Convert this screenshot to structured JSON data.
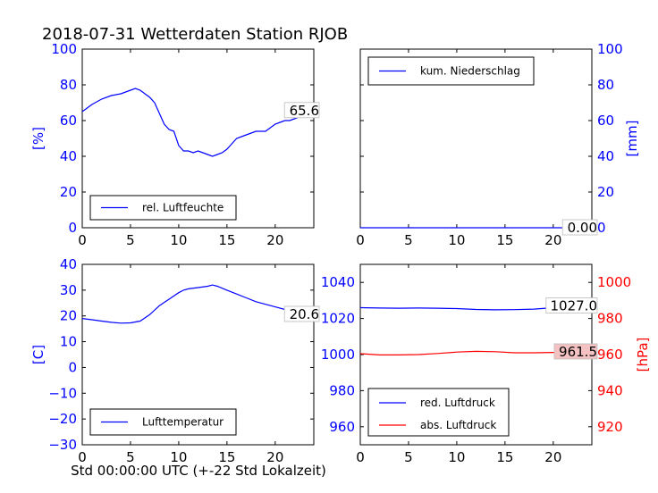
{
  "title": "2018-07-31 Wetterdaten Station RJOB",
  "colors": {
    "blue": "#0000ff",
    "red": "#ff0000",
    "black": "#000000",
    "annot_bg_red": "#f4c2c2"
  },
  "chart_data": [
    {
      "id": "humidity",
      "type": "line",
      "ylabel": "[%]",
      "xlim": [
        0,
        24
      ],
      "ylim": [
        0,
        100
      ],
      "x_ticks": [
        0,
        5,
        10,
        15,
        20
      ],
      "y_ticks": [
        0,
        20,
        40,
        60,
        80,
        100
      ],
      "y_axis_side": "left",
      "legend_placement": "lower-left",
      "series": [
        {
          "name": "rel. Luftfeuchte",
          "color": "#0000ff",
          "x": [
            0,
            1,
            2,
            3,
            4,
            5,
            5.5,
            6,
            6.5,
            7,
            7.5,
            8,
            8.5,
            9,
            9.5,
            10,
            10.5,
            11,
            11.5,
            12,
            12.5,
            13,
            13.5,
            14,
            14.5,
            15,
            15.5,
            16,
            16.5,
            17,
            17.5,
            18,
            18.5,
            19,
            19.5,
            20,
            20.5,
            21,
            21.5,
            22,
            22.5,
            23,
            23.5,
            24
          ],
          "y": [
            65,
            69,
            72,
            74,
            75,
            77,
            78,
            77,
            75,
            73,
            70,
            64,
            58,
            55,
            54,
            46,
            43,
            43,
            42,
            43,
            42,
            41,
            40,
            41,
            42,
            44,
            47,
            50,
            51,
            52,
            53,
            54,
            54,
            54,
            56,
            58,
            59,
            60,
            60,
            61,
            62,
            64,
            65,
            65.6
          ]
        }
      ],
      "annotation": {
        "text": "65.6",
        "x": 24,
        "y": 65.6
      }
    },
    {
      "id": "precipitation",
      "type": "line",
      "ylabel": "[mm]",
      "xlim": [
        0,
        24
      ],
      "ylim": [
        0,
        100
      ],
      "x_ticks": [
        0,
        5,
        10,
        15,
        20
      ],
      "y_ticks": [
        0,
        20,
        40,
        60,
        80,
        100
      ],
      "y_axis_side": "right",
      "legend_placement": "upper-left",
      "series": [
        {
          "name": "kum. Niederschlag",
          "color": "#0000ff",
          "x": [
            0,
            24
          ],
          "y": [
            0,
            0
          ]
        }
      ],
      "annotation": {
        "text": "0.00",
        "x": 24,
        "y": 0
      }
    },
    {
      "id": "temperature",
      "type": "line",
      "ylabel": "[C]",
      "xlabel": "Std 00:00:00 UTC (+-22 Std Lokalzeit)",
      "xlim": [
        0,
        24
      ],
      "ylim": [
        -30,
        40
      ],
      "x_ticks": [
        0,
        5,
        10,
        15,
        20
      ],
      "y_ticks": [
        -30,
        -20,
        -10,
        0,
        10,
        20,
        30,
        40
      ],
      "y_axis_side": "left",
      "legend_placement": "lower-left",
      "series": [
        {
          "name": "Lufttemperatur",
          "color": "#0000ff",
          "x": [
            0,
            1,
            2,
            3,
            4,
            5,
            6,
            7,
            8,
            9,
            10,
            10.5,
            11,
            12,
            13,
            13.5,
            14,
            15,
            16,
            17,
            18,
            19,
            20,
            21,
            22,
            23,
            24
          ],
          "y": [
            19,
            18.5,
            18,
            17.5,
            17.2,
            17.3,
            18,
            20.5,
            24,
            26.5,
            29,
            30,
            30.5,
            31,
            31.5,
            32,
            31.5,
            30,
            28.5,
            27,
            25.5,
            24.5,
            23.5,
            22.5,
            21.5,
            21,
            20.6
          ]
        }
      ],
      "annotation": {
        "text": "20.6",
        "x": 24,
        "y": 20.6
      }
    },
    {
      "id": "pressure",
      "type": "line",
      "xlim": [
        0,
        24
      ],
      "x_ticks": [
        0,
        5,
        10,
        15,
        20
      ],
      "left_axis": {
        "ylim": [
          950,
          1050
        ],
        "ticks": [
          960,
          980,
          1000,
          1020,
          1040
        ],
        "color": "#0000ff"
      },
      "right_axis": {
        "ylabel": "[hPa]",
        "ylim": [
          910,
          1010
        ],
        "ticks": [
          920,
          940,
          960,
          980,
          1000
        ],
        "color": "#ff0000"
      },
      "legend_placement": "lower-left",
      "series": [
        {
          "name": "red. Luftdruck",
          "color": "#0000ff",
          "axis": "left",
          "x": [
            0,
            2,
            4,
            6,
            8,
            10,
            12,
            14,
            16,
            18,
            20,
            22,
            24
          ],
          "y": [
            1026,
            1025.8,
            1025.7,
            1025.8,
            1025.7,
            1025.5,
            1025,
            1024.8,
            1024.9,
            1025.2,
            1026,
            1026.6,
            1027
          ]
        },
        {
          "name": "abs. Luftdruck",
          "color": "#ff0000",
          "axis": "right",
          "x": [
            0,
            2,
            4,
            6,
            8,
            10,
            12,
            14,
            16,
            18,
            20,
            22,
            24
          ],
          "y": [
            960.5,
            959.8,
            959.8,
            960,
            960.6,
            961.4,
            961.8,
            961.6,
            961,
            961,
            961.2,
            961.4,
            961.5
          ]
        }
      ],
      "annotations": [
        {
          "text": "1027.0",
          "x": 24,
          "y": 1027,
          "axis": "left"
        },
        {
          "text": "961.5",
          "x": 24,
          "y": 961.5,
          "axis": "right"
        }
      ]
    }
  ]
}
